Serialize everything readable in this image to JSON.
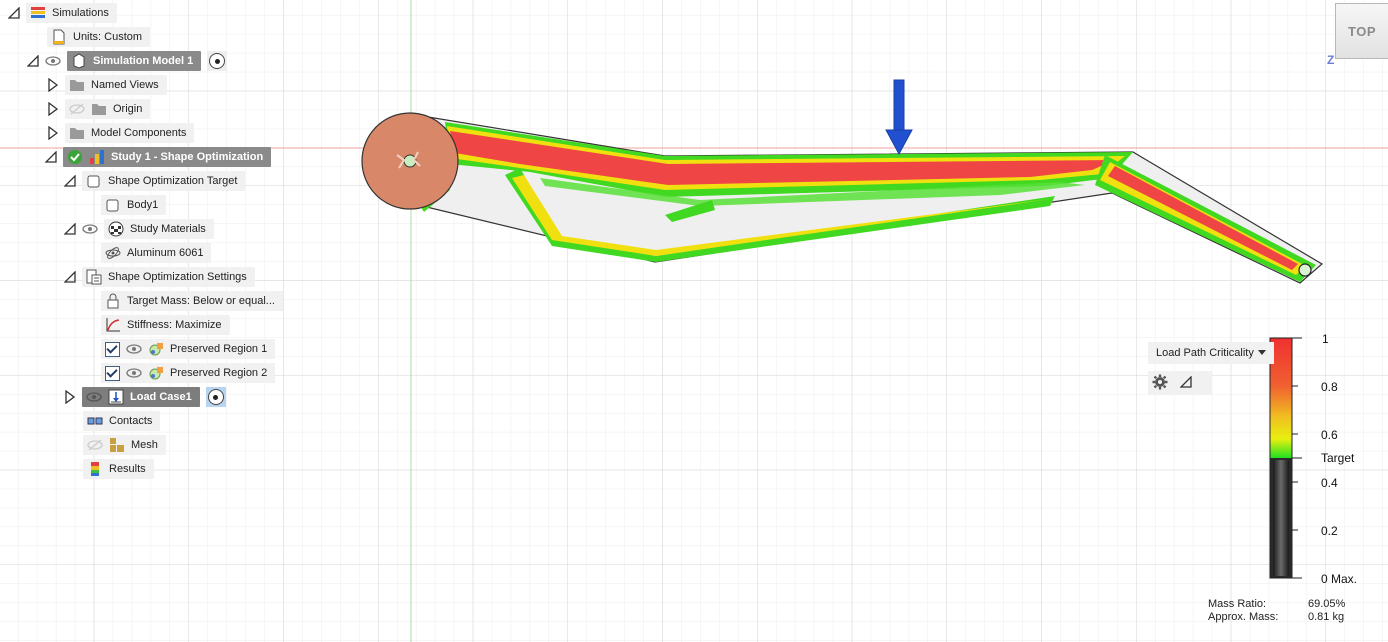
{
  "browser": {
    "root": {
      "label": "Simulations"
    },
    "units": {
      "label": "Units: Custom"
    },
    "model": {
      "label": "Simulation Model 1"
    },
    "named_views": {
      "label": "Named Views"
    },
    "origin": {
      "label": "Origin"
    },
    "model_components": {
      "label": "Model Components"
    },
    "study": {
      "label": "Study 1 - Shape Optimization"
    },
    "target": {
      "label": "Shape Optimization Target"
    },
    "body": {
      "label": "Body1"
    },
    "materials": {
      "label": "Study Materials"
    },
    "aluminum": {
      "label": "Aluminum 6061"
    },
    "settings": {
      "label": "Shape Optimization Settings"
    },
    "target_mass": {
      "label": "Target Mass: Below or equal..."
    },
    "stiffness": {
      "label": "Stiffness: Maximize"
    },
    "preserved1": {
      "label": "Preserved Region 1"
    },
    "preserved2": {
      "label": "Preserved Region 2"
    },
    "load_case": {
      "label": "Load Case1"
    },
    "contacts": {
      "label": "Contacts"
    },
    "mesh": {
      "label": "Mesh"
    },
    "results": {
      "label": "Results"
    }
  },
  "viewcube": {
    "face_label": "TOP",
    "axis_label": "Z"
  },
  "legend": {
    "dropdown_label": "Load Path Criticality",
    "ticks": [
      "1",
      "0.8",
      "0.6",
      "Target",
      "0.4",
      "0.2",
      "0 Max."
    ],
    "mass_ratio_label": "Mass Ratio:",
    "mass_ratio_value": "69.05%",
    "approx_mass_label": "Approx. Mass:",
    "approx_mass_value": "0.81 kg"
  },
  "colors": {
    "high": "#f04545",
    "mid": "#f0f000",
    "low": "#40d820",
    "hub": "#d88868",
    "arrow": "#2050d0"
  },
  "icons": {
    "root": "simulations-icon",
    "units": "document-icon",
    "folder": "folder-icon",
    "visibility": "eye-icon",
    "study_status": "check-circle-icon",
    "gear": "gear-icon"
  }
}
